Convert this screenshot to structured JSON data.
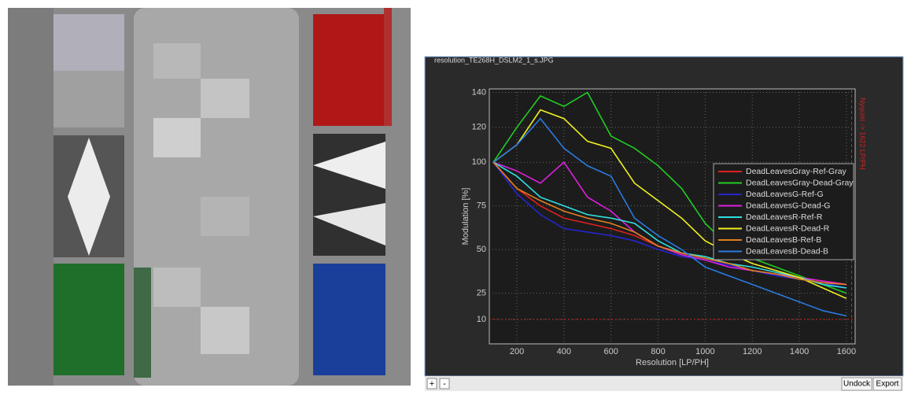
{
  "ui": {
    "window_title": "resolution_TE268H_DSLM2_1_s.JPG",
    "toolbar": [
      "+",
      "-"
    ],
    "buttons": [
      "Undock",
      "Export"
    ]
  },
  "chart_data": {
    "type": "line",
    "x_label": "Resolution [LP/PH]",
    "y_label": "Modulation [%]",
    "annotation": "Nyquist -> 1622 LP/PH",
    "nyquist": 1622,
    "hline": 10,
    "ref_color": "#d02020",
    "x": [
      100,
      200,
      300,
      400,
      500,
      600,
      700,
      800,
      900,
      1000,
      1100,
      1200,
      1300,
      1400,
      1500,
      1600
    ],
    "series": [
      {
        "name": "DeadLeavesGray-Ref-Gray",
        "color": "#e02020",
        "values": [
          100,
          85,
          75,
          68,
          65,
          62,
          58,
          52,
          48,
          45,
          42,
          38,
          36,
          34,
          32,
          30
        ]
      },
      {
        "name": "DeadLeavesGray-Dead-Gray",
        "color": "#22cc22",
        "values": [
          100,
          120,
          138,
          132,
          140,
          115,
          108,
          98,
          85,
          65,
          52,
          45,
          40,
          35,
          30,
          25
        ]
      },
      {
        "name": "DeadLeavesG-Ref-G",
        "color": "#2525d0",
        "values": [
          100,
          82,
          70,
          62,
          60,
          58,
          55,
          50,
          46,
          44,
          41,
          38,
          35,
          33,
          31,
          28
        ]
      },
      {
        "name": "DeadLeavesG-Dead-G",
        "color": "#e020e0",
        "values": [
          100,
          95,
          88,
          100,
          80,
          72,
          60,
          52,
          47,
          44,
          40,
          38,
          36,
          34,
          32,
          30
        ]
      },
      {
        "name": "DeadLeavesR-Ref-R",
        "color": "#30e0e0",
        "values": [
          100,
          92,
          80,
          75,
          70,
          68,
          65,
          55,
          48,
          46,
          42,
          40,
          37,
          34,
          30,
          28
        ]
      },
      {
        "name": "DeadLeavesR-Dead-R",
        "color": "#f0f020",
        "values": [
          100,
          110,
          130,
          125,
          112,
          108,
          88,
          78,
          68,
          55,
          48,
          42,
          38,
          34,
          28,
          22
        ]
      },
      {
        "name": "DeadLeavesB-Ref-B",
        "color": "#e08020",
        "values": [
          100,
          85,
          78,
          72,
          68,
          65,
          60,
          52,
          48,
          45,
          42,
          38,
          36,
          33,
          31,
          30
        ]
      },
      {
        "name": "DeadLeavesB-Dead-B",
        "color": "#2a7ae0",
        "values": [
          100,
          110,
          125,
          108,
          98,
          92,
          68,
          58,
          50,
          40,
          35,
          30,
          25,
          20,
          15,
          12
        ]
      }
    ],
    "xlim": [
      83,
      1637
    ],
    "ylim": [
      -4,
      142
    ],
    "xticks": [
      200,
      400,
      600,
      800,
      1000,
      1200,
      1400,
      1600
    ],
    "yticks": [
      10,
      25,
      50,
      75,
      100,
      120,
      140
    ],
    "grid": true,
    "legend": "center right"
  }
}
